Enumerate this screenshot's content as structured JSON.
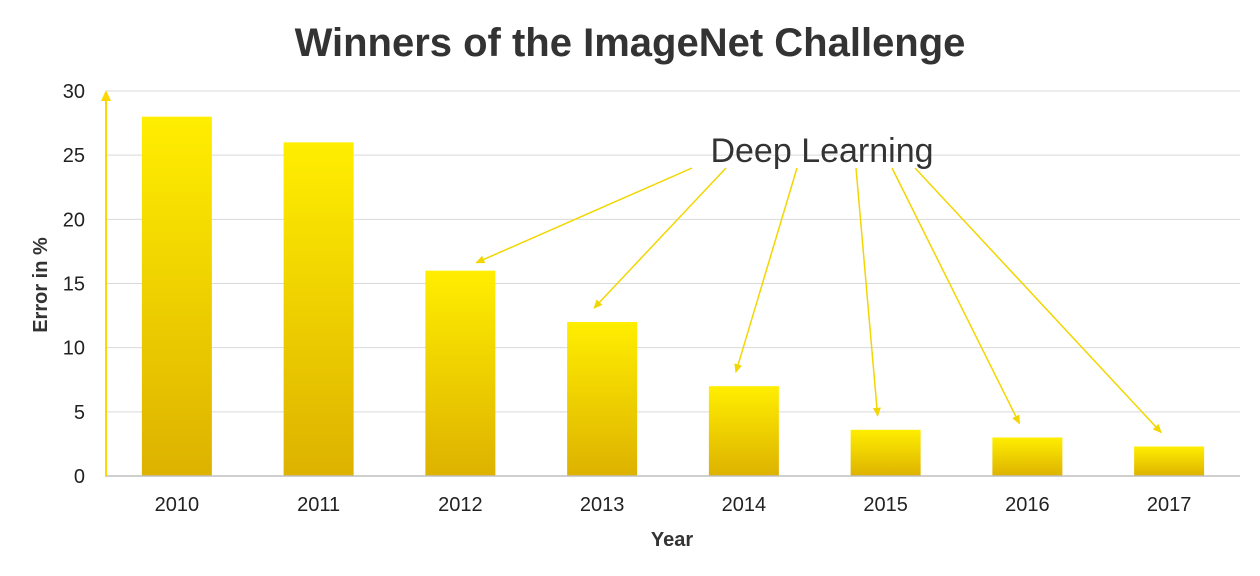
{
  "chart_data": {
    "type": "bar",
    "title": "Winners of the ImageNet Challenge",
    "xlabel": "Year",
    "ylabel": "Error in %",
    "categories": [
      "2010",
      "2011",
      "2012",
      "2013",
      "2014",
      "2015",
      "2016",
      "2017"
    ],
    "values": [
      28,
      26,
      16,
      12,
      7,
      3.6,
      3,
      2.3
    ],
    "ylim": [
      0,
      30
    ],
    "yticks": [
      "0",
      "5",
      "10",
      "15",
      "20",
      "25",
      "30"
    ],
    "grid": true,
    "legend": "none",
    "annotation": {
      "text": "Deep Learning",
      "targets": [
        "2012",
        "2013",
        "2014",
        "2015",
        "2016",
        "2017"
      ]
    },
    "colors": {
      "bar_top": "#FFEE00",
      "bar_bottom": "#DDB200",
      "axis_arrow": "#FFD700",
      "annotation_arrow": "#F2D600",
      "grid": "#D9D9D9"
    }
  }
}
